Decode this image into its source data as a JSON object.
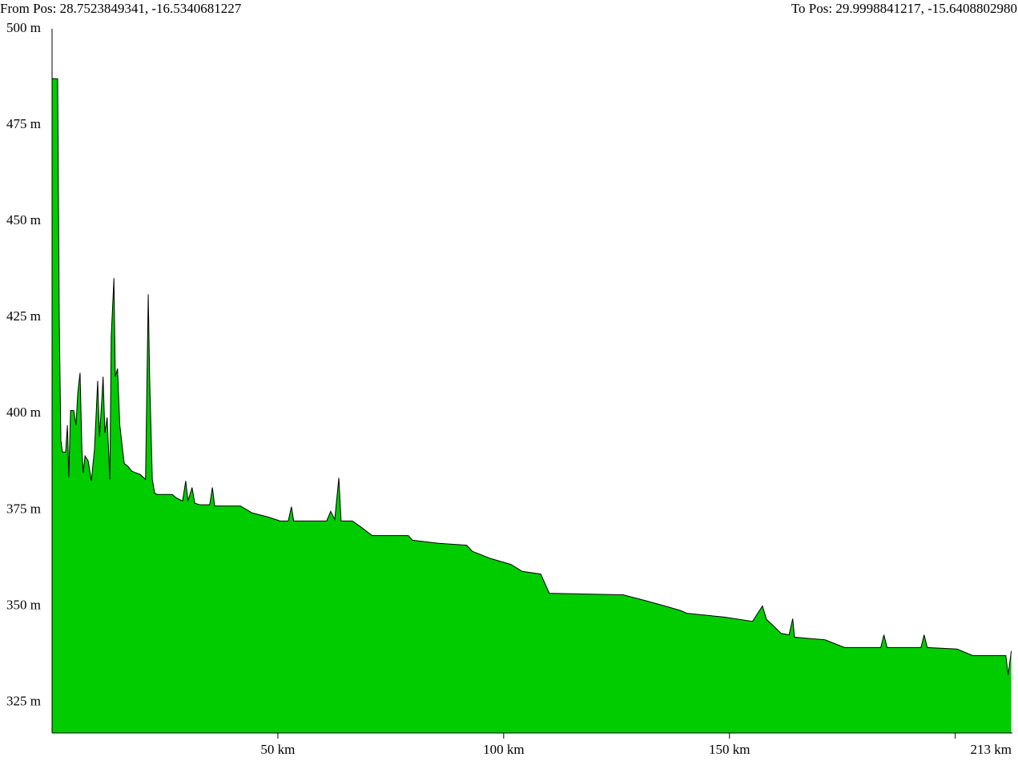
{
  "chart_data": {
    "type": "area",
    "from_position": "From Pos: 28.7523849341, -16.5340681227",
    "to_position": "To Pos: 29.9998841217, -15.6408802980",
    "x": [
      0,
      1.24,
      1.6,
      1.95,
      2.3,
      3.0,
      3.4,
      3.7,
      4.1,
      4.8,
      5.3,
      5.7,
      6.2,
      6.6,
      6.9,
      7.3,
      8.0,
      8.7,
      9.4,
      10.1,
      10.5,
      11.0,
      11.3,
      11.7,
      12.2,
      12.8,
      13.1,
      13.7,
      14.0,
      14.5,
      15.0,
      15.6,
      16.0,
      16.8,
      17.7,
      18.6,
      19.5,
      20.7,
      21.3,
      21.6,
      22.2,
      22.7,
      23.2,
      26.6,
      27.5,
      28.9,
      29.6,
      30.1,
      31.0,
      31.6,
      32.8,
      34.9,
      35.5,
      36.0,
      41.7,
      44.3,
      47.9,
      50.5,
      52.3,
      53.0,
      53.5,
      60.8,
      61.7,
      62.6,
      63.5,
      64.0,
      66.5,
      68.3,
      70.9,
      78.9,
      79.8,
      85.6,
      91.8,
      93.1,
      97.2,
      101.6,
      104.1,
      108.2,
      110.1,
      126.4,
      131.7,
      135.7,
      139.2,
      140.6,
      148.9,
      155.1,
      157.3,
      158.2,
      159.6,
      161.4,
      163.2,
      164.0,
      164.4,
      171.2,
      175.5,
      183.5,
      184.2,
      184.9,
      192.4,
      193.1,
      193.8,
      200.4,
      203.9,
      211.2,
      211.7,
      212.4
    ],
    "values": [
      487.1,
      487,
      424,
      393,
      390,
      390,
      397,
      383.5,
      400.8,
      400.8,
      397,
      405.4,
      410.6,
      390.8,
      384.6,
      389,
      387.7,
      382.5,
      390.8,
      408.5,
      394,
      403.3,
      409.6,
      395,
      399,
      382.9,
      420,
      435.2,
      409.6,
      411.7,
      397,
      390.8,
      387,
      386.3,
      385,
      384.6,
      384.2,
      382.9,
      431,
      409.6,
      382.9,
      379.4,
      379,
      379,
      378.1,
      377.3,
      382.5,
      377.3,
      380.8,
      376.7,
      376.3,
      376.3,
      380.8,
      376,
      376,
      374.2,
      373.1,
      372.1,
      372.1,
      375.8,
      372.1,
      372.1,
      374.6,
      372.5,
      383.3,
      372.1,
      372.1,
      370.6,
      368.3,
      368.3,
      367.1,
      366.3,
      365.8,
      364.2,
      362.3,
      360.8,
      359,
      358.3,
      353.3,
      352.9,
      351.3,
      350,
      348.8,
      348.1,
      347.1,
      346,
      350,
      346.5,
      345,
      342.9,
      342.5,
      346.7,
      341.9,
      341.2,
      339.2,
      339.2,
      342.5,
      339.2,
      339.2,
      342.5,
      339.2,
      338.8,
      337.1,
      337.1,
      332.1,
      338.3
    ],
    "color": "#00cc00",
    "xlim": [
      0,
      213
    ],
    "xticks": [
      {
        "value": 50,
        "label": "50 km"
      },
      {
        "value": 100,
        "label": "100 km"
      },
      {
        "value": 150,
        "label": "150 km"
      },
      {
        "value": 200,
        "label": null
      },
      {
        "value": 213,
        "label": "213 km"
      }
    ],
    "ylim": [
      317,
      500
    ],
    "yticks": [
      {
        "value": 500,
        "label": "500 m"
      },
      {
        "value": 475,
        "label": "475 m"
      },
      {
        "value": 450,
        "label": "450 m"
      },
      {
        "value": 425,
        "label": "425 m"
      },
      {
        "value": 400,
        "label": "400 m"
      },
      {
        "value": 375,
        "label": "375 m"
      },
      {
        "value": 350,
        "label": "350 m"
      },
      {
        "value": 325,
        "label": "325 m"
      }
    ]
  }
}
